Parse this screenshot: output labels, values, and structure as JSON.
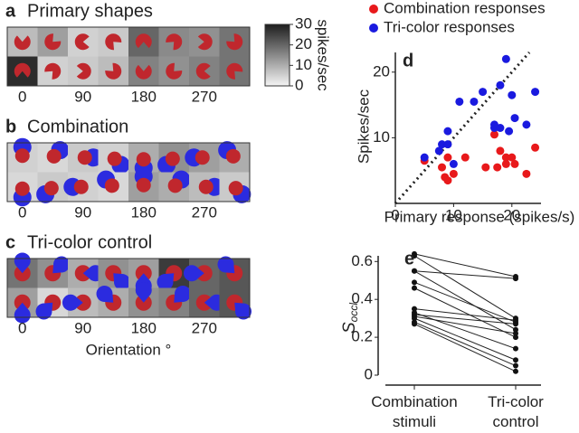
{
  "chart_data": [
    {
      "type": "heatmap",
      "panel": "a",
      "title": "Primary shapes",
      "x": [
        0,
        45,
        90,
        135,
        180,
        225,
        270,
        315
      ],
      "xlim": [
        -22.5,
        337.5
      ],
      "xticks": [
        0,
        90,
        180,
        270
      ],
      "values": [
        [
          8,
          12,
          5,
          6,
          20,
          15,
          14,
          18
        ],
        [
          28,
          5,
          6,
          8,
          16,
          14,
          16,
          18
        ]
      ],
      "zlim": [
        0,
        30
      ],
      "zticks": [
        0,
        10,
        20,
        30
      ],
      "zlabel": "spikes/sec",
      "shape": "pacman"
    },
    {
      "type": "heatmap",
      "panel": "b",
      "title": "Combination",
      "x": [
        0,
        45,
        90,
        135,
        180,
        225,
        270,
        315
      ],
      "xlim": [
        -22.5,
        337.5
      ],
      "xticks": [
        0,
        90,
        180,
        270
      ],
      "values": [
        [
          5,
          4,
          6,
          5,
          10,
          14,
          12,
          10
        ],
        [
          4,
          6,
          5,
          4,
          12,
          10,
          8,
          6
        ]
      ],
      "zlim": [
        0,
        30
      ],
      "shape": "combination"
    },
    {
      "type": "heatmap",
      "panel": "c",
      "title": "Tri-color control",
      "x": [
        0,
        45,
        90,
        135,
        180,
        225,
        270,
        315
      ],
      "xlim": [
        -22.5,
        337.5
      ],
      "xticks": [
        0,
        90,
        180,
        270
      ],
      "values": [
        [
          18,
          14,
          10,
          14,
          12,
          26,
          20,
          22
        ],
        [
          12,
          4,
          8,
          10,
          14,
          16,
          20,
          22
        ]
      ],
      "zlim": [
        0,
        30
      ],
      "xlabel": "Orientation °",
      "shape": "tricolor"
    },
    {
      "type": "scatter",
      "panel": "d",
      "xlabel": "Primary response (spikes/s)",
      "ylabel": "Spikes/sec",
      "xlim": [
        0,
        25
      ],
      "ylim": [
        0,
        23
      ],
      "xticks": [
        0,
        10,
        20
      ],
      "yticks": [
        10,
        20
      ],
      "diagonal": true,
      "series": [
        {
          "name": "Combination responses",
          "color": "#e8191b",
          "x": [
            5,
            8,
            8.5,
            9,
            9,
            10,
            12,
            15.5,
            17,
            17.5,
            18,
            19,
            19,
            20,
            20.5,
            22.5,
            24
          ],
          "values": [
            6.5,
            5.5,
            4,
            7,
            3.5,
            4.5,
            7,
            5.5,
            10.5,
            5.5,
            8,
            6,
            7,
            7,
            6,
            4.5,
            8.5
          ]
        },
        {
          "name": "Tri-color responses",
          "color": "#1a1adf",
          "x": [
            5,
            7.5,
            8,
            9,
            9,
            10,
            11,
            13.5,
            15,
            17,
            17,
            18,
            18,
            19,
            19.5,
            20,
            20.5,
            22.5,
            24
          ],
          "values": [
            7,
            8,
            9,
            9,
            11,
            6,
            15.5,
            15.5,
            17,
            11.5,
            12,
            18,
            11.5,
            22,
            11,
            16.5,
            13,
            12,
            17
          ]
        }
      ]
    },
    {
      "type": "paired",
      "panel": "e",
      "ylabel": "S",
      "ylabel_sub": "occl",
      "categories": [
        "Combination stimuli",
        "Tri-color control"
      ],
      "ylim": [
        0,
        0.63
      ],
      "yticks": [
        0,
        0.2,
        0.4,
        0.6
      ],
      "values": [
        [
          0.64,
          0.52
        ],
        [
          0.63,
          0.3
        ],
        [
          0.55,
          0.51
        ],
        [
          0.55,
          0.24
        ],
        [
          0.49,
          0.28
        ],
        [
          0.46,
          0.2
        ],
        [
          0.35,
          0.29
        ],
        [
          0.33,
          0.14
        ],
        [
          0.32,
          0.27
        ],
        [
          0.31,
          0.22
        ],
        [
          0.3,
          0.08
        ],
        [
          0.28,
          0.05
        ],
        [
          0.27,
          0.02
        ]
      ]
    }
  ]
}
